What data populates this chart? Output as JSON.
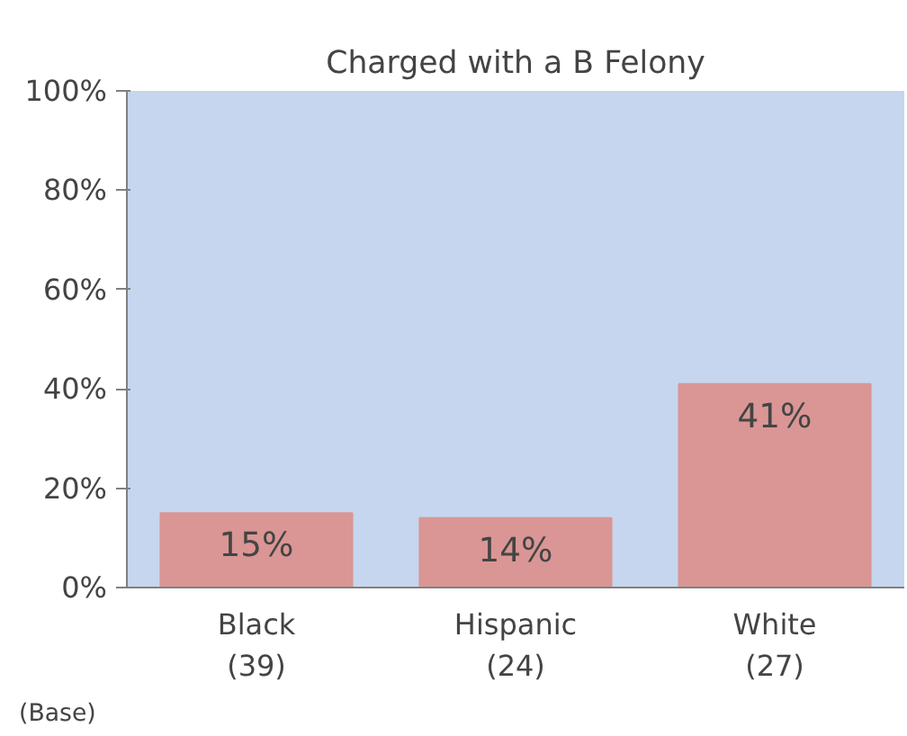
{
  "chart_data": {
    "type": "bar",
    "title": "Charged with a B Felony",
    "categories": [
      "Black\n(39)",
      "Hispanic\n(24)",
      "White\n(27)"
    ],
    "series": [
      {
        "color": "#d99694",
        "values": [
          15,
          14,
          41
        ],
        "value_labels": [
          "15%",
          "14%",
          "41%"
        ]
      }
    ],
    "ylim": [
      0,
      100
    ],
    "yticks": [
      {
        "value": 0,
        "label": "0%"
      },
      {
        "value": 20,
        "label": "20%"
      },
      {
        "value": 40,
        "label": "40%"
      },
      {
        "value": 60,
        "label": "60%"
      },
      {
        "value": 80,
        "label": "80%"
      },
      {
        "value": 100,
        "label": "100%"
      }
    ],
    "grid": false,
    "annotations": [
      "(Base)"
    ]
  }
}
